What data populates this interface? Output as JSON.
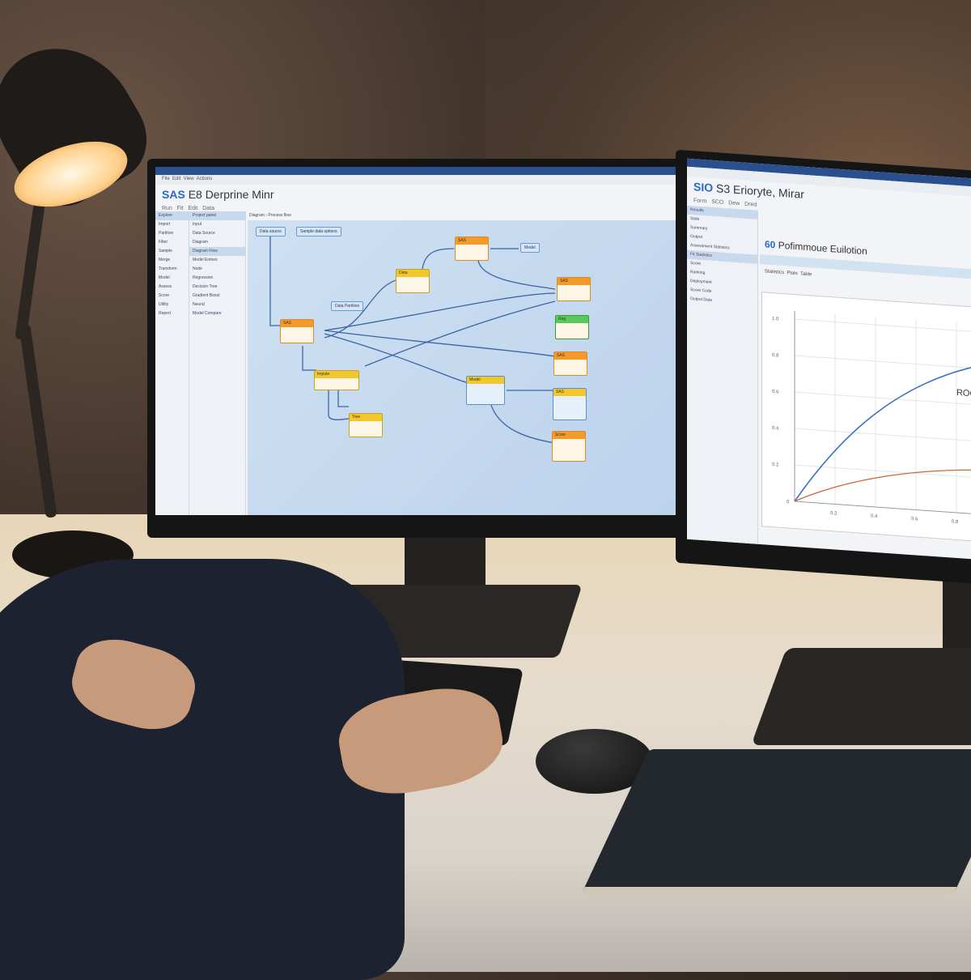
{
  "left_monitor": {
    "app_title_brand": "SAS",
    "app_title": "E8 Derprine Minr",
    "menu": [
      "File",
      "Edit",
      "View",
      "Actions"
    ],
    "toolbar": [
      "Run",
      "Fit",
      "Edit",
      "Data"
    ],
    "sidebar_items": [
      "Explore",
      "Import",
      "Partition",
      "Filter",
      "Sample",
      "Merge",
      "Transform",
      "Model",
      "Assess",
      "Score",
      "Utility",
      "Report"
    ],
    "tree_items": [
      "Project panel",
      "Input",
      "Data Source",
      "Diagram",
      "Diagram Flow",
      "Model Entries",
      "Node",
      "Regression",
      "Decision Tree",
      "Gradient Boost",
      "Neural",
      "Model Compare"
    ],
    "canvas_breadcrumb": "Diagram › Process flow",
    "canvas_labels": [
      "Data source",
      "Sample data options",
      "Data Partition",
      "Model"
    ],
    "nodes": [
      {
        "title": "SAS",
        "color": "orange"
      },
      {
        "title": "Data",
        "color": "yellow"
      },
      {
        "title": "SAS",
        "color": "orange"
      },
      {
        "title": "Impute",
        "color": "yellow"
      },
      {
        "title": "Tree",
        "color": "yellow"
      },
      {
        "title": "SAS",
        "color": "orange"
      },
      {
        "title": "Reg",
        "color": "green"
      },
      {
        "title": "SAS",
        "color": "orange"
      },
      {
        "title": "Model",
        "color": "yellow"
      },
      {
        "title": "SAS",
        "color": "orange"
      },
      {
        "title": "Score",
        "color": "orange"
      }
    ]
  },
  "right_monitor": {
    "app_title_brand": "SIO",
    "app_title": "S3 Erioryte, Mirar",
    "toolbar": [
      "Form",
      "SCO",
      "Dew",
      "Dred"
    ],
    "sidebar_items": [
      "Results",
      "Stats",
      "Summary",
      "Output",
      "Assessment Statistics",
      "Fit Statistics",
      "Score",
      "Ranking",
      "Deployment",
      "Score Code",
      "Output Data"
    ],
    "section_title_brand": "60",
    "section_title": "Pofimmoue Euilotion",
    "tabs": [
      "Statistics",
      "Plots",
      "Table"
    ],
    "chart_label": "ROC",
    "y_ticks": [
      "1.0",
      "0.8",
      "0.6",
      "0.4",
      "0.2",
      "0"
    ],
    "x_ticks": [
      "0.2",
      "0.4",
      "0.6",
      "0.8"
    ]
  },
  "colors": {
    "accent": "#2a6acb",
    "roc_model": "#3a6fc4",
    "roc_baseline": "#d0643a",
    "node_orange": "#f39a2a",
    "node_yellow": "#f2c72c",
    "node_green": "#5ac85a"
  }
}
